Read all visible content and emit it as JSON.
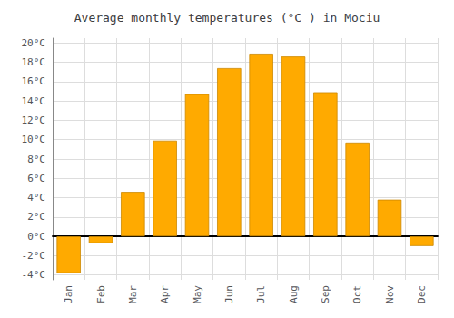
{
  "chart_data": {
    "type": "bar",
    "title": "Average monthly temperatures (°C ) in Mociu",
    "categories": [
      "Jan",
      "Feb",
      "Mar",
      "Apr",
      "May",
      "Jun",
      "Jul",
      "Aug",
      "Sep",
      "Oct",
      "Nov",
      "Dec"
    ],
    "values": [
      -3.8,
      -0.7,
      4.6,
      9.9,
      14.7,
      17.4,
      18.9,
      18.6,
      14.9,
      9.7,
      3.8,
      -1.0
    ],
    "color": "#FFAA00",
    "ylim": [
      -4.5,
      20.5
    ],
    "yticks": [
      {
        "value": -4,
        "label": "-4°C"
      },
      {
        "value": -2,
        "label": "-2°C"
      },
      {
        "value": 0,
        "label": "0°C"
      },
      {
        "value": 2,
        "label": "2°C"
      },
      {
        "value": 4,
        "label": "4°C"
      },
      {
        "value": 6,
        "label": "6°C"
      },
      {
        "value": 8,
        "label": "8°C"
      },
      {
        "value": 10,
        "label": "10°C"
      },
      {
        "value": 12,
        "label": "12°C"
      },
      {
        "value": 14,
        "label": "14°C"
      },
      {
        "value": 16,
        "label": "16°C"
      },
      {
        "value": 18,
        "label": "18°C"
      },
      {
        "value": 20,
        "label": "20°C"
      }
    ],
    "grid": true
  }
}
